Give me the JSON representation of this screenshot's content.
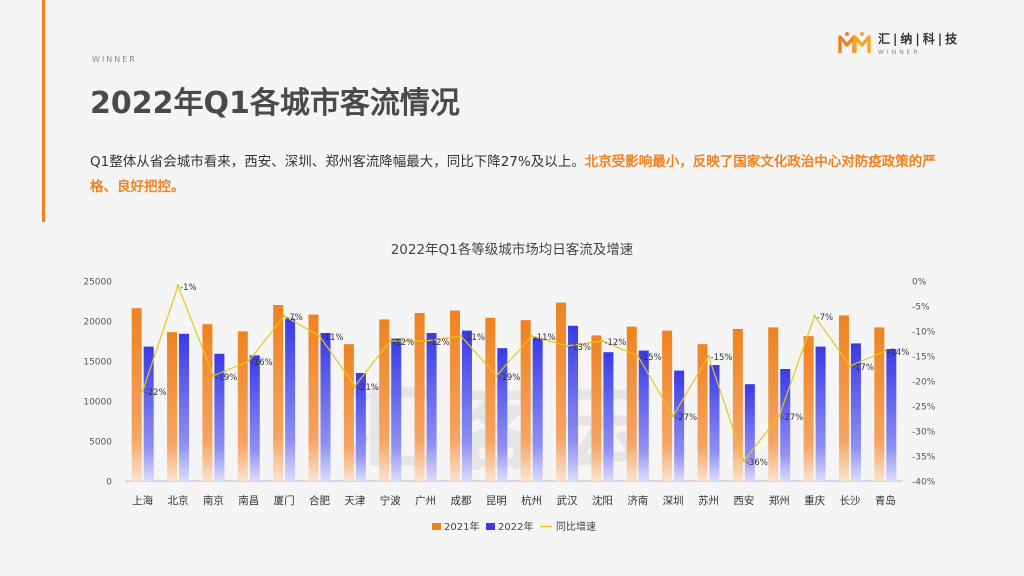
{
  "header": {
    "brand": "WINNER",
    "title": "2022年Q1各城市客流情况"
  },
  "description": {
    "normal": "Q1整体从省会城市看来，西安、深圳、郑州客流降幅最大，同比下降27%及以上。",
    "highlight": "北京受影响最小，反映了国家文化政治中心对防疫政策的严格、良好把控。"
  },
  "logo": {
    "cn": "汇|纳|科|技",
    "en": "WINNER"
  },
  "watermark": "汇客云",
  "colors": {
    "accent": "#f0821e",
    "bar2021": "#f0821e",
    "bar2022": "#3a3ae6",
    "line": "#e8c619"
  },
  "chart_data": {
    "type": "bar",
    "title": "2022年Q1各等级城市场均日客流及增速",
    "categories": [
      "上海",
      "北京",
      "南京",
      "南昌",
      "厦门",
      "合肥",
      "天津",
      "宁波",
      "广州",
      "成都",
      "昆明",
      "杭州",
      "武汉",
      "沈阳",
      "济南",
      "深圳",
      "苏州",
      "西安",
      "郑州",
      "重庆",
      "长沙",
      "青岛"
    ],
    "series": [
      {
        "name": "2021年",
        "type": "bar",
        "values": [
          21600,
          18600,
          19600,
          18700,
          22000,
          20800,
          17100,
          20200,
          21000,
          21300,
          20400,
          20100,
          22300,
          18200,
          19300,
          18800,
          17100,
          19000,
          19200,
          18100,
          20700,
          19200
        ]
      },
      {
        "name": "2022年",
        "type": "bar",
        "values": [
          16800,
          18400,
          15900,
          15700,
          20300,
          18500,
          13500,
          17800,
          18500,
          18800,
          16600,
          17900,
          19400,
          16100,
          16300,
          13800,
          14500,
          12100,
          14000,
          16800,
          17200,
          16500
        ]
      },
      {
        "name": "同比增速",
        "type": "line",
        "axis": "right",
        "values": [
          -22,
          -1,
          -19,
          -16,
          -7,
          -11,
          -21,
          -12,
          -12,
          -11,
          -19,
          -11,
          -13,
          -12,
          -15,
          -27,
          -15,
          -36,
          -27,
          -7,
          -17,
          -14
        ]
      }
    ],
    "data_labels": [
      "-22%",
      "-1%",
      "-19%",
      "-16%",
      "-7%",
      "-11%",
      "-21%",
      "-12%",
      "-12%",
      "-11%",
      "-19%",
      "-11%",
      "-13%",
      "-12%",
      "-15%",
      "-27%",
      "-15%",
      "-36%",
      "-27%",
      "-7%",
      "-17%",
      "-14%"
    ],
    "y_left": {
      "min": 0,
      "max": 25000,
      "ticks": [
        0,
        5000,
        10000,
        15000,
        20000,
        25000
      ],
      "tick_labels": [
        "0",
        "5000",
        "10000",
        "15000",
        "20000",
        "25000"
      ]
    },
    "y_right": {
      "min": -40,
      "max": 0,
      "ticks": [
        0,
        -5,
        -10,
        -15,
        -20,
        -25,
        -30,
        -35,
        -40
      ],
      "tick_labels": [
        "0%",
        "-5%",
        "-10%",
        "-15%",
        "-20%",
        "-25%",
        "-30%",
        "-35%",
        "-40%"
      ]
    },
    "legend": [
      "2021年",
      "2022年",
      "同比增速"
    ],
    "legend_position": "bottom"
  }
}
